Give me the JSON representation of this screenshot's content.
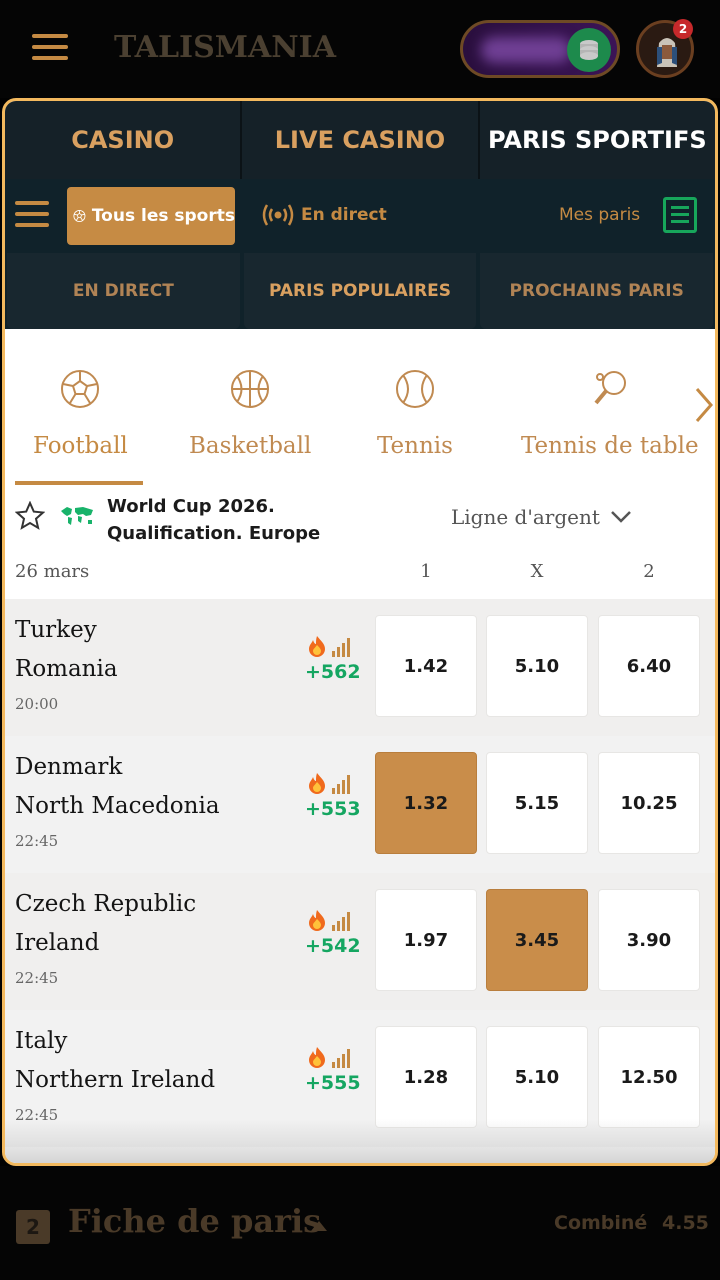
{
  "header": {
    "logo": "TALISMANIA",
    "notification_count": "2"
  },
  "main_tabs": [
    {
      "label": "CASINO"
    },
    {
      "label": "LIVE CASINO"
    },
    {
      "label": "PARIS SPORTIFS"
    }
  ],
  "sub_nav": {
    "all_sports": "Tous les sports",
    "live": "En direct",
    "my_bets": "Mes paris"
  },
  "categories": [
    {
      "label": "EN DIRECT"
    },
    {
      "label": "PARIS POPULAIRES"
    },
    {
      "label": "PROCHAINS PARIS"
    }
  ],
  "sports": [
    {
      "label": "Football",
      "icon": "football-icon"
    },
    {
      "label": "Basketball",
      "icon": "basketball-icon"
    },
    {
      "label": "Tennis",
      "icon": "tennis-icon"
    },
    {
      "label": "Tennis de table",
      "icon": "table-tennis-icon"
    }
  ],
  "league": {
    "name_line1": "World Cup 2026.",
    "name_line2": "Qualification. Europe",
    "market": "Ligne d'argent"
  },
  "odds_header": {
    "date": "26 mars",
    "col1": "1",
    "colx": "X",
    "col2": "2"
  },
  "matches": [
    {
      "home": "Turkey",
      "away": "Romania",
      "time": "20:00",
      "markets": "+562",
      "odds": [
        "1.42",
        "5.10",
        "6.40"
      ],
      "selected": -1
    },
    {
      "home": "Denmark",
      "away": "North Macedonia",
      "time": "22:45",
      "markets": "+553",
      "odds": [
        "1.32",
        "5.15",
        "10.25"
      ],
      "selected": 0
    },
    {
      "home": "Czech Republic",
      "away": "Ireland",
      "time": "22:45",
      "markets": "+542",
      "odds": [
        "1.97",
        "3.45",
        "3.90"
      ],
      "selected": 1
    },
    {
      "home": "Italy",
      "away": "Northern Ireland",
      "time": "22:45",
      "markets": "+555",
      "odds": [
        "1.28",
        "5.10",
        "12.50"
      ],
      "selected": -1
    }
  ],
  "bet_slip": {
    "count": "2",
    "title": "Fiche de paris",
    "combined_label": "Combiné",
    "combined_value": "4.55"
  },
  "colors": {
    "accent": "#c58a43",
    "green": "#15a661",
    "frame": "#f3b95e"
  }
}
